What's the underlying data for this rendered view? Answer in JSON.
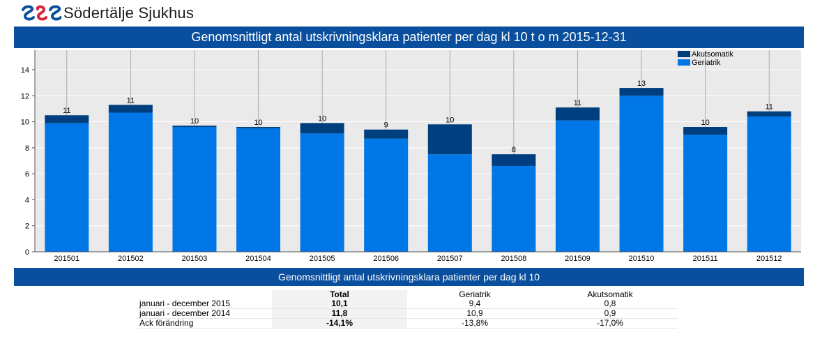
{
  "brand": {
    "name": "Södertälje Sjukhus"
  },
  "title": "Genomsnittligt antal utskrivningsklara patienter per dag kl 10 t o m 2015-12-31",
  "subtitle": "Genomsnittligt antal utskrivningsklara patienter per dag kl 10",
  "colors": {
    "header": "#0a4f9e",
    "geriatrik": "#0077e6",
    "akutsomatik": "#003f7f",
    "plot_bg": "#eaeaea"
  },
  "chart_data": {
    "type": "bar",
    "stacked": true,
    "categories": [
      "201501",
      "201502",
      "201503",
      "201504",
      "201505",
      "201506",
      "201507",
      "201508",
      "201509",
      "201510",
      "201511",
      "201512"
    ],
    "series": [
      {
        "name": "Geriatrik",
        "values": [
          9.9,
          10.7,
          9.6,
          9.5,
          9.1,
          8.7,
          7.5,
          6.6,
          10.1,
          12.0,
          9.0,
          10.4
        ]
      },
      {
        "name": "Akutsomatik",
        "values": [
          0.6,
          0.6,
          0.1,
          0.1,
          0.8,
          0.7,
          2.3,
          0.9,
          1.0,
          0.6,
          0.6,
          0.4
        ]
      }
    ],
    "totals_labels": [
      "11",
      "11",
      "10",
      "10",
      "10",
      "9",
      "10",
      "8",
      "11",
      "13",
      "10",
      "11"
    ],
    "ylim": [
      0,
      15.5
    ],
    "yticks": [
      0,
      2,
      4,
      6,
      8,
      10,
      12,
      14
    ],
    "legend_position": "top-right",
    "grid": true
  },
  "table": {
    "headers": [
      "",
      "Total",
      "Geriatrik",
      "Akutsomatik"
    ],
    "rows": [
      [
        "januari - december 2015",
        "10,1",
        "9,4",
        "0,8"
      ],
      [
        "januari - december 2014",
        "11,8",
        "10,9",
        "0,9"
      ],
      [
        "Ack förändring",
        "-14,1%",
        "-13,8%",
        "-17,0%"
      ]
    ]
  }
}
